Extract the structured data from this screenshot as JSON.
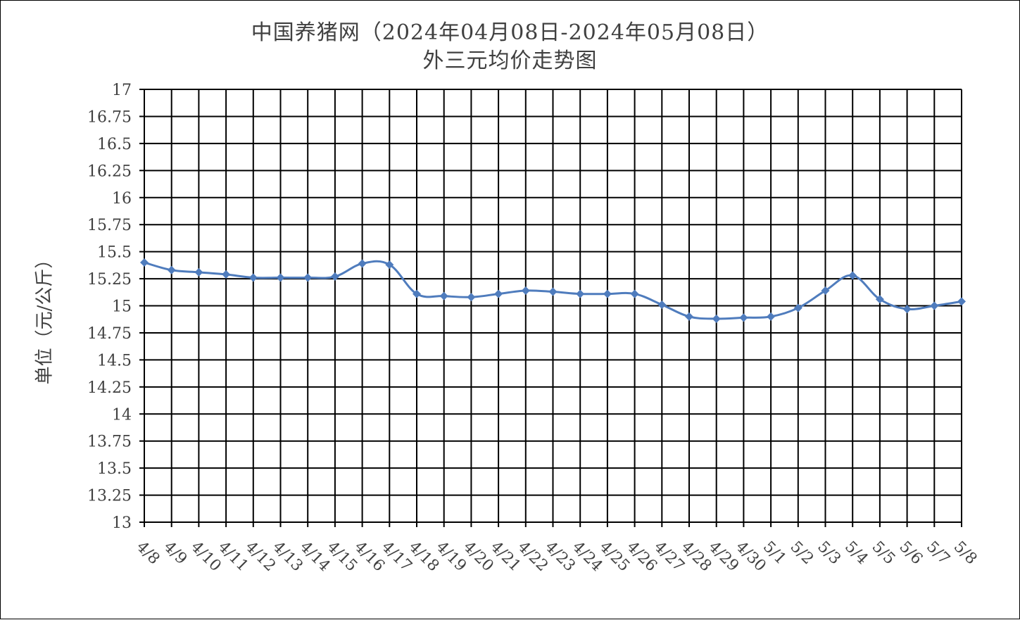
{
  "chart_data": {
    "type": "line",
    "title": "中国养猪网（2024年04月08日-2024年05月08日）",
    "subtitle": "外三元均价走势图",
    "ylabel": "单位（元/公斤）",
    "xlabel": "",
    "ylim": [
      13,
      17
    ],
    "ystep": 0.25,
    "yticks": [
      "13",
      "13.25",
      "13.5",
      "13.75",
      "14",
      "14.25",
      "14.5",
      "14.75",
      "15",
      "15.25",
      "15.5",
      "15.75",
      "16",
      "16.25",
      "16.5",
      "16.75",
      "17"
    ],
    "grid": true,
    "categories": [
      "4/8",
      "4/9",
      "4/10",
      "4/11",
      "4/12",
      "4/13",
      "4/14",
      "4/15",
      "4/16",
      "4/17",
      "4/18",
      "4/19",
      "4/20",
      "4/21",
      "4/22",
      "4/23",
      "4/24",
      "4/25",
      "4/26",
      "4/27",
      "4/28",
      "4/29",
      "4/30",
      "5/1",
      "5/2",
      "5/3",
      "5/4",
      "5/5",
      "5/6",
      "5/7",
      "5/8"
    ],
    "series": [
      {
        "values": [
          15.4,
          15.33,
          15.31,
          15.29,
          15.26,
          15.26,
          15.26,
          15.27,
          15.39,
          15.38,
          15.11,
          15.09,
          15.08,
          15.11,
          15.14,
          15.13,
          15.11,
          15.11,
          15.11,
          15.01,
          14.9,
          14.88,
          14.89,
          14.9,
          14.98,
          15.14,
          15.28,
          15.06,
          14.97,
          15.0,
          15.04
        ],
        "color": "#4F7CBD"
      }
    ]
  }
}
